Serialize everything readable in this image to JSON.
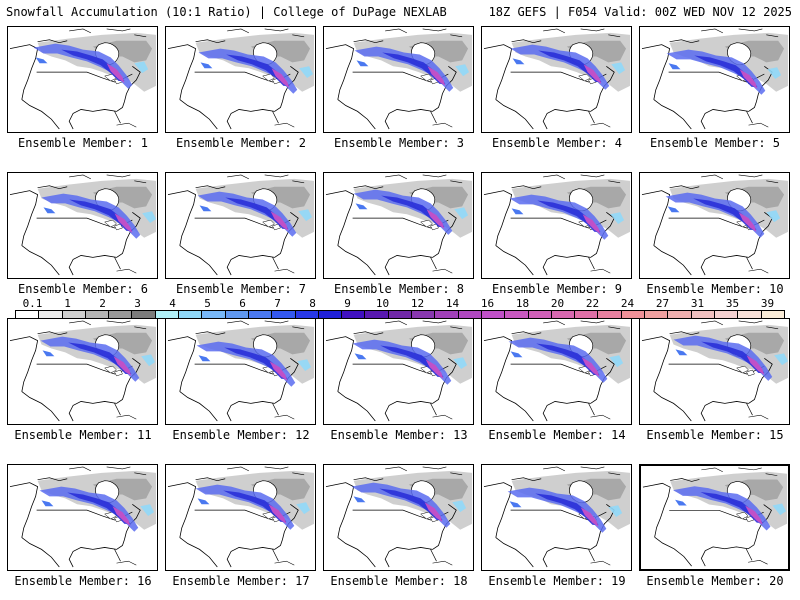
{
  "header": {
    "title": "Snowfall Accumulation (10:1 Ratio) | College of DuPage NEXLAB",
    "run_info": "18Z GEFS | F054 Valid: 00Z WED NOV 12 2025"
  },
  "members": [
    {
      "label": "Ensemble Member: 1"
    },
    {
      "label": "Ensemble Member: 2"
    },
    {
      "label": "Ensemble Member: 3"
    },
    {
      "label": "Ensemble Member: 4"
    },
    {
      "label": "Ensemble Member: 5"
    },
    {
      "label": "Ensemble Member: 6"
    },
    {
      "label": "Ensemble Member: 7"
    },
    {
      "label": "Ensemble Member: 8"
    },
    {
      "label": "Ensemble Member: 9"
    },
    {
      "label": "Ensemble Member: 10"
    },
    {
      "label": "Ensemble Member: 11"
    },
    {
      "label": "Ensemble Member: 12"
    },
    {
      "label": "Ensemble Member: 13"
    },
    {
      "label": "Ensemble Member: 14"
    },
    {
      "label": "Ensemble Member: 15"
    },
    {
      "label": "Ensemble Member: 16"
    },
    {
      "label": "Ensemble Member: 17"
    },
    {
      "label": "Ensemble Member: 18"
    },
    {
      "label": "Ensemble Member: 19"
    },
    {
      "label": "Ensemble Member: 20"
    }
  ],
  "colorbar": {
    "ticks": [
      "0.1",
      "1",
      "2",
      "3",
      "4",
      "5",
      "6",
      "7",
      "8",
      "9",
      "10",
      "12",
      "14",
      "16",
      "18",
      "20",
      "22",
      "24",
      "27",
      "31",
      "35",
      "39"
    ],
    "colors": [
      "#ffffff",
      "#ececec",
      "#d0d0d0",
      "#b4b4b4",
      "#989898",
      "#7c7c7c",
      "#b0f0f8",
      "#90d8f8",
      "#78b8f8",
      "#6098f0",
      "#4a78f0",
      "#3458f0",
      "#2838e8",
      "#2020d8",
      "#4010c0",
      "#5818b0",
      "#7028a8",
      "#8838b0",
      "#a040b8",
      "#b048c0",
      "#c050c8",
      "#c858c0",
      "#d060b8",
      "#d868b0",
      "#e070a8",
      "#e880a0",
      "#f09098",
      "#f0a0a0",
      "#f0b0b0",
      "#f0c0c0",
      "#f4d0d0",
      "#f8e0d8",
      "#faecd8"
    ]
  }
}
